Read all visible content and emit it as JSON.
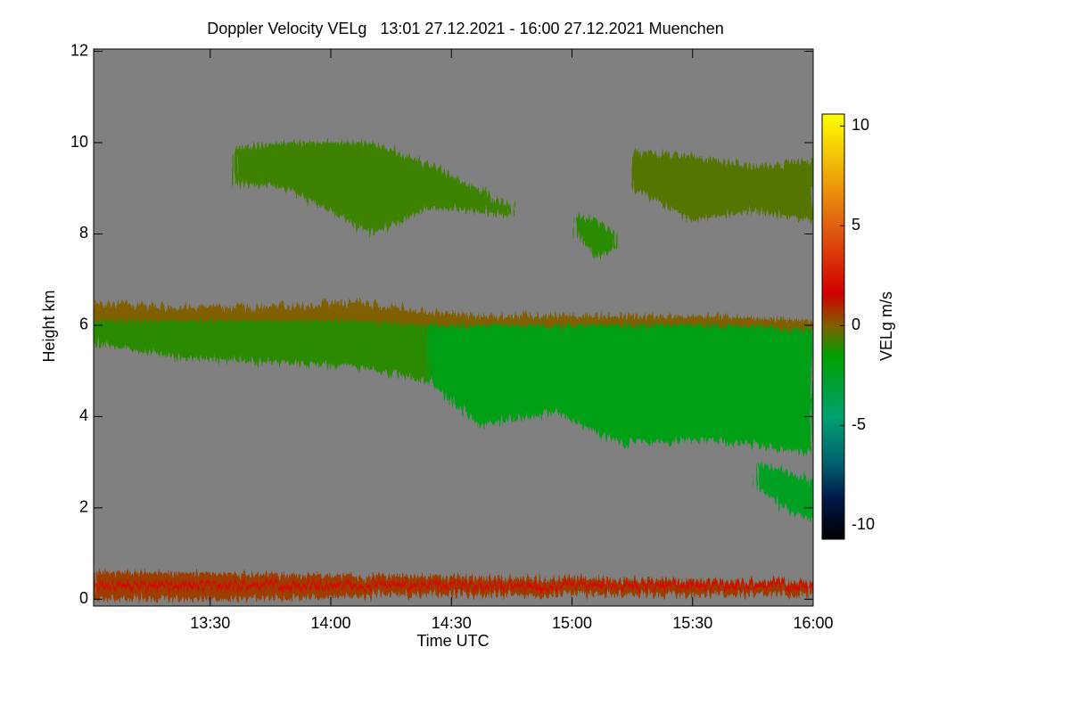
{
  "chart_data": {
    "type": "heatmap",
    "title": "Doppler Velocity VELg   13:01 27.12.2021 - 16:00 27.12.2021 Muenchen",
    "xlabel": "Time UTC",
    "ylabel": "Height km",
    "colorbar_label": "VELg m/s",
    "xlim": [
      781,
      960
    ],
    "xticks": [
      {
        "value": 810,
        "label": "13:30"
      },
      {
        "value": 840,
        "label": "14:00"
      },
      {
        "value": 870,
        "label": "14:30"
      },
      {
        "value": 900,
        "label": "15:00"
      },
      {
        "value": 930,
        "label": "15:30"
      },
      {
        "value": 960,
        "label": "16:00"
      }
    ],
    "ylim": [
      -0.15,
      12.05
    ],
    "yticks": [
      0,
      2,
      4,
      6,
      8,
      10,
      12
    ],
    "clim": [
      -10.7,
      10.6
    ],
    "cticks": [
      10,
      5,
      0,
      -5,
      -10
    ],
    "background": "#808080",
    "colorscale": [
      {
        "value": -10.7,
        "color": "#000000"
      },
      {
        "value": -8.7,
        "color": "#001848"
      },
      {
        "value": -6.9,
        "color": "#006070"
      },
      {
        "value": -4.6,
        "color": "#00a070"
      },
      {
        "value": -1.5,
        "color": "#00a000"
      },
      {
        "value": 0,
        "color": "#806000"
      },
      {
        "value": 1.6,
        "color": "#d00000"
      },
      {
        "value": 5,
        "color": "#e06010"
      },
      {
        "value": 10.6,
        "color": "#ffff00"
      }
    ],
    "echoes": [
      {
        "x": [
          781,
          802,
          824,
          846,
          864,
          877,
          895,
          913,
          935,
          960
        ],
        "top": [
          6.5,
          6.4,
          6.4,
          6.5,
          6.3,
          6.2,
          6.2,
          6.2,
          6.2,
          6.1
        ],
        "bottom": [
          5.9,
          5.9,
          5.9,
          5.9,
          5.9,
          5.8,
          5.8,
          5.8,
          5.8,
          5.8
        ],
        "value": 0
      },
      {
        "x": [
          781,
          802,
          824,
          846,
          864,
          870
        ],
        "top": [
          6.1,
          6.1,
          6.1,
          6.1,
          6.0,
          6.0
        ],
        "bottom": [
          5.6,
          5.3,
          5.2,
          5.1,
          4.8,
          4.6
        ],
        "value": -1
      },
      {
        "x": [
          864,
          877,
          895,
          913,
          935,
          960
        ],
        "top": [
          6.0,
          6.0,
          6.0,
          6.0,
          6.0,
          5.9
        ],
        "bottom": [
          4.8,
          3.8,
          4.1,
          3.4,
          3.5,
          3.2
        ],
        "value": -2
      },
      {
        "x": [
          816,
          830,
          850,
          865,
          885
        ],
        "top": [
          9.9,
          10.0,
          10.0,
          9.5,
          8.6
        ],
        "bottom": [
          9.1,
          9.0,
          8.0,
          8.6,
          8.4
        ],
        "value": -0.8
      },
      {
        "x": [
          901,
          906,
          911
        ],
        "top": [
          8.4,
          8.3,
          8.0
        ],
        "bottom": [
          8.0,
          7.5,
          7.7
        ],
        "value": -1
      },
      {
        "x": [
          915,
          930,
          945,
          960
        ],
        "top": [
          9.8,
          9.7,
          9.5,
          9.6
        ],
        "bottom": [
          9.0,
          8.3,
          8.5,
          8.3
        ],
        "value": -0.5
      },
      {
        "x": [
          946,
          953,
          960
        ],
        "top": [
          3.0,
          2.8,
          2.6
        ],
        "bottom": [
          2.5,
          2.0,
          1.7
        ],
        "value": -2.5
      },
      {
        "x": [
          781,
          820,
          860,
          900,
          940,
          960
        ],
        "top": [
          0.6,
          0.55,
          0.5,
          0.45,
          0.4,
          0.4
        ],
        "bottom": [
          0.0,
          0.0,
          0.1,
          0.1,
          0.1,
          0.1
        ],
        "value": 0.6
      },
      {
        "x": [
          781,
          960
        ],
        "top": [
          0.35,
          0.35
        ],
        "bottom": [
          0.25,
          0.25
        ],
        "value": 2
      }
    ]
  }
}
